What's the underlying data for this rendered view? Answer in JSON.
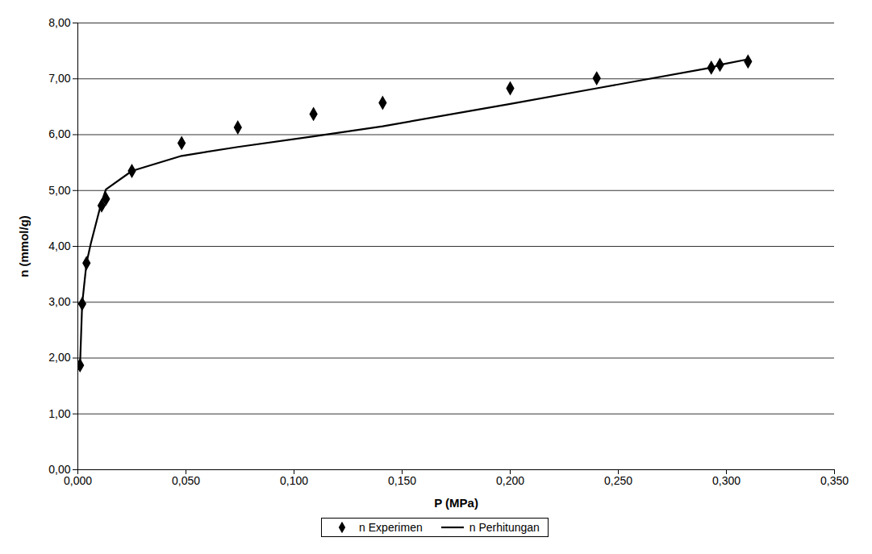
{
  "chart_data": {
    "type": "scatter",
    "x_label": "P (MPa)",
    "y_label": "n (mmol/g)",
    "xlim": [
      0,
      0.35
    ],
    "ylim": [
      0,
      8
    ],
    "xticks": [
      {
        "value": 0,
        "label": "0,000"
      },
      {
        "value": 0.05,
        "label": "0,050"
      },
      {
        "value": 0.1,
        "label": "0,100"
      },
      {
        "value": 0.15,
        "label": "0,150"
      },
      {
        "value": 0.2,
        "label": "0,200"
      },
      {
        "value": 0.25,
        "label": "0,250"
      },
      {
        "value": 0.3,
        "label": "0,300"
      },
      {
        "value": 0.35,
        "label": "0,350"
      }
    ],
    "yticks": [
      {
        "value": 0,
        "label": "0,00"
      },
      {
        "value": 1,
        "label": "1,00"
      },
      {
        "value": 2,
        "label": "2,00"
      },
      {
        "value": 3,
        "label": "3,00"
      },
      {
        "value": 4,
        "label": "4,00"
      },
      {
        "value": 5,
        "label": "5,00"
      },
      {
        "value": 6,
        "label": "6,00"
      },
      {
        "value": 7,
        "label": "7,00"
      },
      {
        "value": 8,
        "label": "8,00"
      }
    ],
    "grid": true,
    "legend": "bottom",
    "series": [
      {
        "name": "n Experimen",
        "type": "scatter",
        "marker": "diamond",
        "color": "#000000",
        "x": [
          0.001,
          0.002,
          0.004,
          0.011,
          0.013,
          0.025,
          0.048,
          0.074,
          0.109,
          0.141,
          0.2,
          0.24,
          0.293,
          0.297,
          0.31
        ],
        "values": [
          1.87,
          2.97,
          3.7,
          4.73,
          4.85,
          5.35,
          5.85,
          6.13,
          6.37,
          6.57,
          6.83,
          7.01,
          7.2,
          7.25,
          7.31
        ]
      },
      {
        "name": "n Perhitungan",
        "type": "line",
        "line_style": "solid",
        "color": "#000000",
        "x": [
          0.001,
          0.002,
          0.004,
          0.006,
          0.011,
          0.013,
          0.025,
          0.048,
          0.074,
          0.109,
          0.141,
          0.2,
          0.24,
          0.293,
          0.297,
          0.31
        ],
        "values": [
          1.85,
          2.97,
          3.7,
          4.05,
          4.8,
          5.02,
          5.35,
          5.62,
          5.78,
          5.97,
          6.15,
          6.55,
          6.83,
          7.2,
          7.25,
          7.35
        ]
      }
    ]
  }
}
